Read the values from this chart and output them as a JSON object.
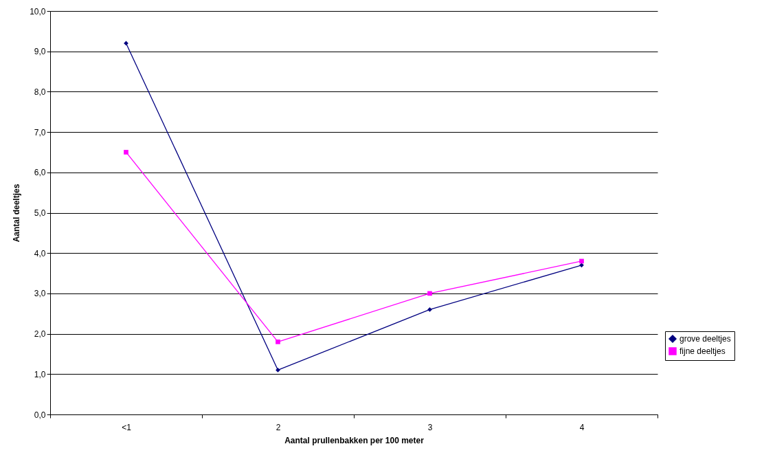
{
  "chart_data": {
    "type": "line",
    "xlabel": "Aantal prullenbakken per 100 meter",
    "ylabel": "Aantal deeltjes",
    "categories": [
      "<1",
      "2",
      "3",
      "4"
    ],
    "series": [
      {
        "name": "grove deeltjes",
        "color": "#000080",
        "marker": "diamond",
        "values": [
          9.2,
          1.1,
          2.6,
          3.7
        ]
      },
      {
        "name": "fijne deeltjes",
        "color": "#ff00ff",
        "marker": "square",
        "values": [
          6.5,
          1.8,
          3.0,
          3.8
        ]
      }
    ],
    "ylim": [
      0,
      10
    ],
    "yticks": [
      {
        "value": 0,
        "label": "0,0"
      },
      {
        "value": 1,
        "label": "1,0"
      },
      {
        "value": 2,
        "label": "2,0"
      },
      {
        "value": 3,
        "label": "3,0"
      },
      {
        "value": 4,
        "label": "4,0"
      },
      {
        "value": 5,
        "label": "5,0"
      },
      {
        "value": 6,
        "label": "6,0"
      },
      {
        "value": 7,
        "label": "7,0"
      },
      {
        "value": 8,
        "label": "8,0"
      },
      {
        "value": 9,
        "label": "9,0"
      },
      {
        "value": 10,
        "label": "10,0"
      }
    ],
    "grid": "y",
    "legend": "right",
    "line_style": "solid"
  }
}
